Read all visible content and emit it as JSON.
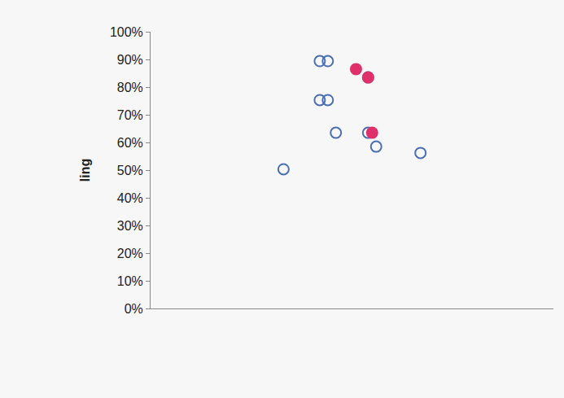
{
  "chart_data": {
    "type": "scatter",
    "y_label": "ling",
    "xlim": [
      0,
      10
    ],
    "xticks": [],
    "ylim": [
      0,
      100
    ],
    "yticks": [
      {
        "value": 0,
        "label": "0%"
      },
      {
        "value": 10,
        "label": "10%"
      },
      {
        "value": 20,
        "label": "20%"
      },
      {
        "value": 30,
        "label": "30%"
      },
      {
        "value": 40,
        "label": "40%"
      },
      {
        "value": 50,
        "label": "50%"
      },
      {
        "value": 60,
        "label": "60%"
      },
      {
        "value": 70,
        "label": "70%"
      },
      {
        "value": 80,
        "label": "80%"
      },
      {
        "value": 90,
        "label": "90%"
      },
      {
        "value": 100,
        "label": "100%"
      }
    ],
    "tick_labels": "y",
    "grid": false,
    "series": [
      {
        "color": "#4a6fb5",
        "marker": "circle-open",
        "x": [
          4.2,
          4.4,
          5.4,
          4.6,
          5.4,
          5.6,
          6.7,
          3.3,
          4.2,
          4.4
        ],
        "values": [
          89.4,
          89.4,
          83.5,
          63.5,
          63.5,
          58.5,
          56.2,
          50.3,
          75.3,
          75.3
        ]
      },
      {
        "color": "#e0306a",
        "marker": "circle",
        "x": [
          5.1,
          5.5,
          5.4
        ],
        "values": [
          86.5,
          63.5,
          83.5
        ]
      }
    ]
  }
}
